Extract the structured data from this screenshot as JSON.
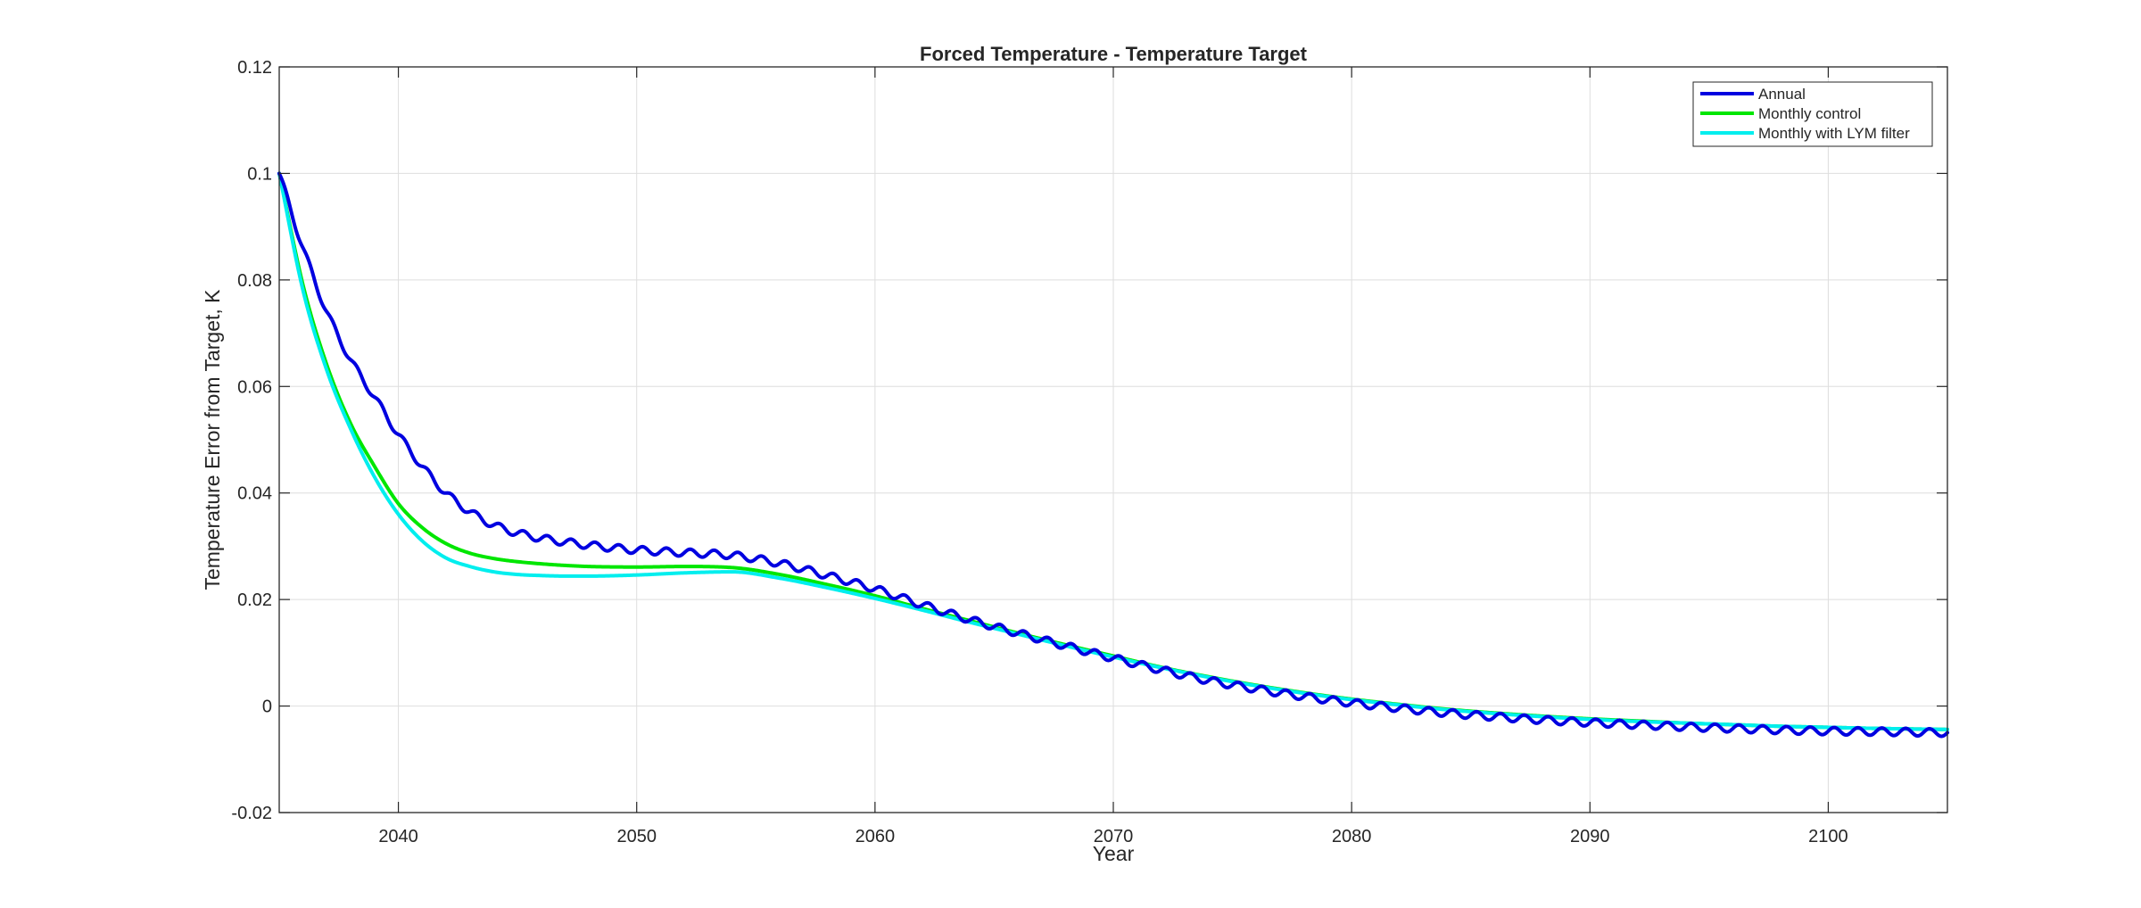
{
  "chart_data": {
    "type": "line",
    "title": "Forced Temperature - Temperature Target",
    "xlabel": "Year",
    "ylabel": "Temperature Error from Target, K",
    "xlim": [
      2035,
      2105
    ],
    "ylim": [
      -0.02,
      0.12
    ],
    "xticks": [
      2040,
      2050,
      2060,
      2070,
      2080,
      2090,
      2100
    ],
    "yticks": [
      -0.02,
      0,
      0.02,
      0.04,
      0.06,
      0.08,
      0.1,
      0.12
    ],
    "ytick_labels": [
      "-0.02",
      "0",
      "0.02",
      "0.04",
      "0.06",
      "0.08",
      "0.1",
      "0.12"
    ],
    "grid": true,
    "legend_position": "top-right",
    "series": [
      {
        "name": "Annual",
        "color": "#0000e0",
        "oscillation_amplitude": 0.0007,
        "x": [
          2035,
          2036,
          2037,
          2038,
          2039,
          2040,
          2041,
          2042,
          2043,
          2044,
          2045,
          2046,
          2047,
          2048,
          2049,
          2050,
          2052,
          2054,
          2056,
          2058,
          2060,
          2062,
          2064,
          2066,
          2068,
          2070,
          2072,
          2074,
          2076,
          2078,
          2080,
          2082,
          2084,
          2086,
          2088,
          2090,
          2092,
          2094,
          2096,
          2098,
          2100,
          2102,
          2105
        ],
        "values": [
          0.1,
          0.086,
          0.074,
          0.065,
          0.058,
          0.051,
          0.045,
          0.04,
          0.0365,
          0.034,
          0.0325,
          0.0315,
          0.0308,
          0.0302,
          0.0297,
          0.0293,
          0.0288,
          0.0283,
          0.0268,
          0.0245,
          0.022,
          0.019,
          0.0162,
          0.0137,
          0.0113,
          0.009,
          0.0068,
          0.0048,
          0.0032,
          0.0018,
          0.0006,
          -0.0004,
          -0.0013,
          -0.002,
          -0.0026,
          -0.0031,
          -0.0035,
          -0.0039,
          -0.0042,
          -0.0045,
          -0.0047,
          -0.0048,
          -0.005
        ]
      },
      {
        "name": "Monthly control",
        "color": "#00e600",
        "oscillation_amplitude": 0,
        "x": [
          2035,
          2036,
          2037,
          2038,
          2039,
          2040,
          2041,
          2042,
          2043,
          2044,
          2045,
          2046,
          2047,
          2048,
          2050,
          2052,
          2054,
          2056,
          2058,
          2060,
          2062,
          2064,
          2066,
          2068,
          2070,
          2072,
          2074,
          2076,
          2078,
          2080,
          2082,
          2084,
          2086,
          2088,
          2090,
          2092,
          2094,
          2096,
          2098,
          2100,
          2102,
          2105
        ],
        "values": [
          0.1,
          0.079,
          0.064,
          0.053,
          0.045,
          0.038,
          0.0335,
          0.0305,
          0.0287,
          0.0277,
          0.0271,
          0.0267,
          0.0264,
          0.0262,
          0.0261,
          0.0262,
          0.026,
          0.0247,
          0.0228,
          0.0207,
          0.0183,
          0.016,
          0.0137,
          0.0115,
          0.0094,
          0.0073,
          0.0055,
          0.0039,
          0.0025,
          0.0013,
          0.0003,
          -0.0006,
          -0.0013,
          -0.0019,
          -0.0024,
          -0.0028,
          -0.0032,
          -0.0035,
          -0.0038,
          -0.004,
          -0.0042,
          -0.0044
        ]
      },
      {
        "name": "Monthly with LYM filter",
        "color": "#00eeee",
        "oscillation_amplitude": 0,
        "x": [
          2035,
          2036,
          2037,
          2038,
          2039,
          2040,
          2041,
          2042,
          2043,
          2044,
          2045,
          2046,
          2047,
          2048,
          2050,
          2052,
          2054,
          2056,
          2058,
          2060,
          2062,
          2064,
          2066,
          2068,
          2070,
          2072,
          2074,
          2076,
          2078,
          2080,
          2082,
          2084,
          2086,
          2088,
          2090,
          2092,
          2094,
          2096,
          2098,
          2100,
          2102,
          2105
        ],
        "values": [
          0.1,
          0.078,
          0.063,
          0.052,
          0.043,
          0.036,
          0.031,
          0.0278,
          0.0262,
          0.0252,
          0.0247,
          0.0245,
          0.0244,
          0.0244,
          0.0246,
          0.025,
          0.0252,
          0.024,
          0.0222,
          0.0202,
          0.018,
          0.0157,
          0.0135,
          0.0113,
          0.0092,
          0.0072,
          0.0054,
          0.0038,
          0.0024,
          0.0012,
          0.0002,
          -0.0007,
          -0.0014,
          -0.002,
          -0.0025,
          -0.0029,
          -0.0032,
          -0.0035,
          -0.0038,
          -0.004,
          -0.0042,
          -0.0044
        ]
      }
    ]
  }
}
